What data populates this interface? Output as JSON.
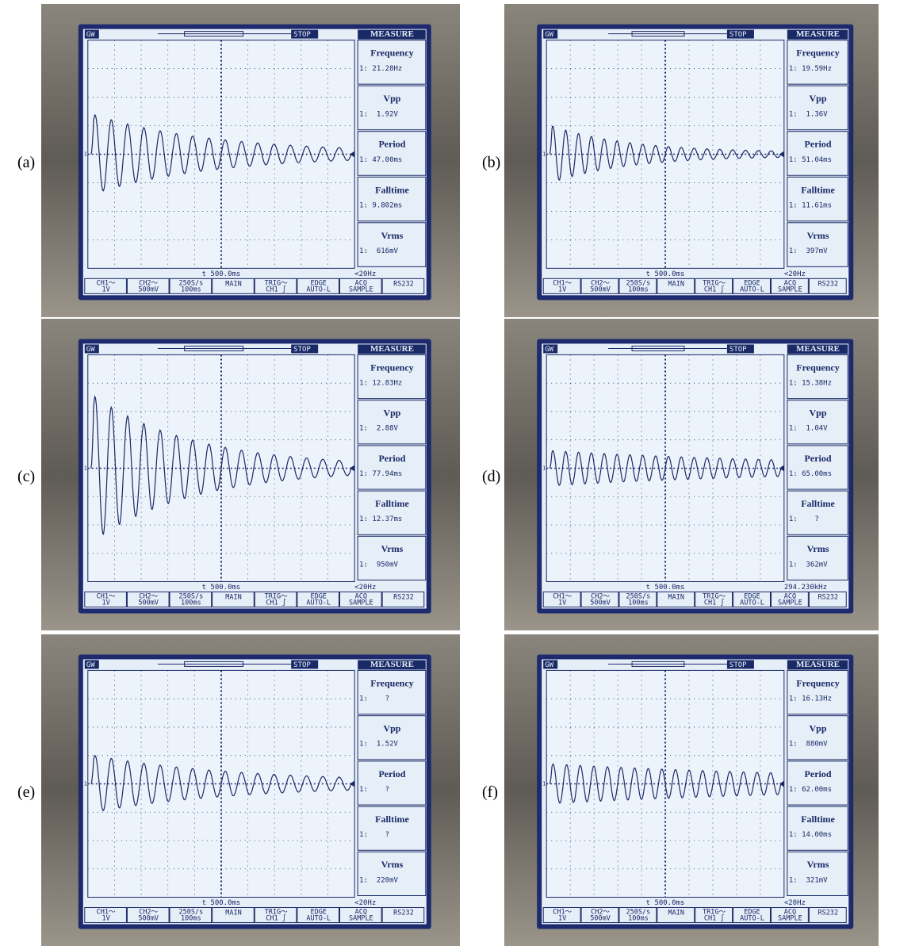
{
  "panels": [
    {
      "label": "(a)",
      "brand": "GW",
      "status": "STOP",
      "menu": "MEASURE",
      "marker": "1",
      "measurements": [
        {
          "name": "Frequency",
          "value": "1: 21.28Hz"
        },
        {
          "name": "Vpp",
          "value": "1:  1.92V"
        },
        {
          "name": "Period",
          "value": "1: 47.00ms"
        },
        {
          "name": "Falltime",
          "value": "1: 9.802ms"
        },
        {
          "name": "Vrms",
          "value": "1:  616mV"
        }
      ],
      "timebase": "t 500.0ms",
      "trigger_freq": "<20Hz",
      "bottom": [
        [
          "CH1～",
          "1V"
        ],
        [
          "CH2～",
          "500mV"
        ],
        [
          "250S/s",
          "100ms"
        ],
        [
          "MAIN"
        ],
        [
          "TRIG～",
          "CH1 ∫"
        ],
        [
          "EDGE",
          "AUTO-L"
        ],
        [
          "ACQ",
          "SAMPLE"
        ],
        [
          "RS232"
        ]
      ]
    },
    {
      "label": "(b)",
      "brand": "GW",
      "status": "STOP",
      "menu": "MEASURE",
      "marker": "1",
      "measurements": [
        {
          "name": "Frequency",
          "value": "1: 19.59Hz"
        },
        {
          "name": "Vpp",
          "value": "1:  1.36V"
        },
        {
          "name": "Period",
          "value": "1: 51.04ms"
        },
        {
          "name": "Falltime",
          "value": "1: 11.61ms"
        },
        {
          "name": "Vrms",
          "value": "1:  397mV"
        }
      ],
      "timebase": "t 500.0ms",
      "trigger_freq": "<20Hz",
      "bottom": [
        [
          "CH1～",
          "1V"
        ],
        [
          "CH2～",
          "500mV"
        ],
        [
          "250S/s",
          "100ms"
        ],
        [
          "MAIN"
        ],
        [
          "TRIG～",
          "CH1 ∫"
        ],
        [
          "EDGE",
          "AUTO-L"
        ],
        [
          "ACQ",
          "SAMPLE"
        ],
        [
          "RS232"
        ]
      ]
    },
    {
      "label": "(c)",
      "brand": "GW",
      "status": "STOP",
      "menu": "MEASURE",
      "marker": "1",
      "measurements": [
        {
          "name": "Frequency",
          "value": "1: 12.83Hz"
        },
        {
          "name": "Vpp",
          "value": "1:  2.88V"
        },
        {
          "name": "Period",
          "value": "1: 77.94ms"
        },
        {
          "name": "Falltime",
          "value": "1: 12.37ms"
        },
        {
          "name": "Vrms",
          "value": "1:  950mV"
        }
      ],
      "timebase": "t 500.0ms",
      "trigger_freq": "<20Hz",
      "bottom": [
        [
          "CH1～",
          "1V"
        ],
        [
          "CH2～",
          "500mV"
        ],
        [
          "250S/s",
          "100ms"
        ],
        [
          "MAIN"
        ],
        [
          "TRIG～",
          "CH1 ∫"
        ],
        [
          "EDGE",
          "AUTO-L"
        ],
        [
          "ACQ",
          "SAMPLE"
        ],
        [
          "RS232"
        ]
      ]
    },
    {
      "label": "(d)",
      "brand": "GW",
      "status": "STOP",
      "menu": "MEASURE",
      "marker": "1",
      "measurements": [
        {
          "name": "Frequency",
          "value": "1: 15.38Hz"
        },
        {
          "name": "Vpp",
          "value": "1:  1.04V"
        },
        {
          "name": "Period",
          "value": "1: 65.00ms"
        },
        {
          "name": "Falltime",
          "value": "1:    ?"
        },
        {
          "name": "Vrms",
          "value": "1:  362mV"
        }
      ],
      "timebase": "t 500.0ms",
      "trigger_freq": "294.230kHz",
      "bottom": [
        [
          "CH1～",
          "1V"
        ],
        [
          "CH2～",
          "500mV"
        ],
        [
          "250S/s",
          "100ms"
        ],
        [
          "MAIN"
        ],
        [
          "TRIG～",
          "CH1 ∫"
        ],
        [
          "EDGE",
          "AUTO-L"
        ],
        [
          "ACQ",
          "SAMPLE"
        ],
        [
          "RS232"
        ]
      ]
    },
    {
      "label": "(e)",
      "brand": "GW",
      "status": "STOP",
      "menu": "MEASURE",
      "marker": "1",
      "measurements": [
        {
          "name": "Frequency",
          "value": "1:    ?"
        },
        {
          "name": "Vpp",
          "value": "1:  1.52V"
        },
        {
          "name": "Period",
          "value": "1:    ?"
        },
        {
          "name": "Falltime",
          "value": "1:    ?"
        },
        {
          "name": "Vrms",
          "value": "1:  220mV"
        }
      ],
      "timebase": "t 500.0ms",
      "trigger_freq": "<20Hz",
      "bottom": [
        [
          "CH1～",
          "1V"
        ],
        [
          "CH2～",
          "500mV"
        ],
        [
          "250S/s",
          "100ms"
        ],
        [
          "MAIN"
        ],
        [
          "TRIG～",
          "CH1 ∫"
        ],
        [
          "EDGE",
          "AUTO-L"
        ],
        [
          "ACQ",
          "SAMPLE"
        ],
        [
          "RS232"
        ]
      ]
    },
    {
      "label": "(f)",
      "brand": "GW",
      "status": "STOP",
      "menu": "MEASURE",
      "marker": "1",
      "measurements": [
        {
          "name": "Frequency",
          "value": "1: 16.13Hz"
        },
        {
          "name": "Vpp",
          "value": "1:  880mV"
        },
        {
          "name": "Period",
          "value": "1: 62.00ms"
        },
        {
          "name": "Falltime",
          "value": "1: 14.00ms"
        },
        {
          "name": "Vrms",
          "value": "1:  321mV"
        }
      ],
      "timebase": "t 500.0ms",
      "trigger_freq": "<20Hz",
      "bottom": [
        [
          "CH1～",
          "1V"
        ],
        [
          "CH2～",
          "500mV"
        ],
        [
          "250S/s",
          "100ms"
        ],
        [
          "MAIN"
        ],
        [
          "TRIG～",
          "CH1 ∫"
        ],
        [
          "EDGE",
          "AUTO-L"
        ],
        [
          "ACQ",
          "SAMPLE"
        ],
        [
          "RS232"
        ]
      ]
    }
  ]
}
